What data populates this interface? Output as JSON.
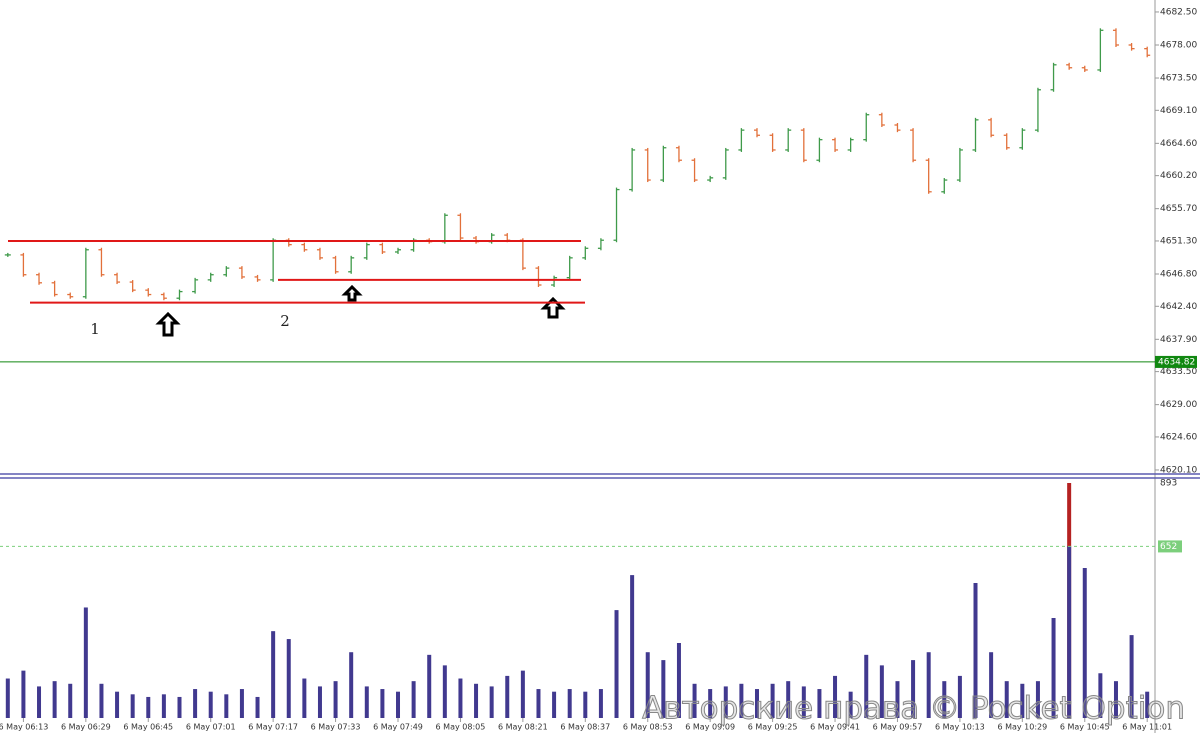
{
  "chart_data": [
    {
      "type": "ohlc",
      "categories": [
        null,
        "6 May 06:13",
        null,
        null,
        null,
        "6 May 06:29",
        null,
        null,
        null,
        "6 May 06:45",
        null,
        null,
        null,
        "6 May 07:01",
        null,
        null,
        null,
        "6 May 07:17",
        null,
        null,
        null,
        "6 May 07:33",
        null,
        null,
        null,
        "6 May 07:49",
        null,
        null,
        null,
        "6 May 08:05",
        null,
        null,
        null,
        "6 May 08:21",
        null,
        null,
        null,
        "6 May 08:37",
        null,
        null,
        null,
        "6 May 08:53",
        null,
        null,
        null,
        "6 May 09:09",
        null,
        null,
        null,
        "6 May 09:25",
        null,
        null,
        null,
        "6 May 09:41",
        null,
        null,
        null,
        "6 May 09:57",
        null,
        null,
        null,
        "6 May 10:13",
        null,
        null,
        null,
        "6 May 10:29",
        null,
        null,
        null,
        "6 May 10:45",
        null,
        null,
        null,
        "6 May 11:01"
      ],
      "values": [
        4649.4,
        4646.7,
        4645.6,
        4644.0,
        4643.7,
        4650.1,
        4646.7,
        4645.7,
        4644.6,
        4644.0,
        4643.5,
        4644.4,
        4646.0,
        4646.7,
        4647.6,
        4646.4,
        4646.0,
        4651.4,
        4650.8,
        4650.1,
        4649.0,
        4647.1,
        4649.0,
        4650.8,
        4649.8,
        4650.1,
        4651.4,
        4651.2,
        4654.8,
        4651.7,
        4651.2,
        4652.1,
        4651.4,
        4647.6,
        4645.3,
        4646.3,
        4649.0,
        4650.3,
        4651.4,
        4658.3,
        4663.7,
        4659.6,
        4664.0,
        4662.3,
        4659.6,
        4659.9,
        4663.7,
        4666.4,
        4665.7,
        4663.7,
        4666.4,
        4662.3,
        4665.1,
        4663.7,
        4665.1,
        4668.5,
        4667.1,
        4666.4,
        4662.3,
        4658.0,
        4659.6,
        4663.7,
        4667.8,
        4665.7,
        4664.0,
        4666.4,
        4671.9,
        4675.3,
        4674.9,
        4674.6,
        4680.0,
        4678.0,
        4677.5,
        4676.6
      ],
      "up_color": "#3f9a4a",
      "down_color": "#e2703a",
      "ylim": [
        4619.55,
        4684.13
      ],
      "yticks": [
        {
          "value": 4682.5,
          "label": "4682.50"
        },
        {
          "value": 4678.0,
          "label": "4678.00"
        },
        {
          "value": 4673.5,
          "label": "4673.50"
        },
        {
          "value": 4669.1,
          "label": "4669.10"
        },
        {
          "value": 4664.6,
          "label": "4664.60"
        },
        {
          "value": 4660.2,
          "label": "4660.20"
        },
        {
          "value": 4655.7,
          "label": "4655.70"
        },
        {
          "value": 4651.3,
          "label": "4651.30"
        },
        {
          "value": 4646.8,
          "label": "4646.80"
        },
        {
          "value": 4642.4,
          "label": "4642.40"
        },
        {
          "value": 4637.9,
          "label": "4637.90"
        },
        {
          "value": 4633.5,
          "label": "4633.50"
        },
        {
          "value": 4629.0,
          "label": "4629.00"
        },
        {
          "value": 4624.6,
          "label": "4624.60"
        },
        {
          "value": 4620.1,
          "label": "4620.10"
        }
      ],
      "current_price": 4634.82,
      "current_color": "#118811",
      "levels": [
        4651.3,
        4646.0,
        4642.9
      ],
      "level_color": "#e01818",
      "annotations": [
        "1",
        "2"
      ]
    },
    {
      "type": "bar",
      "values": [
        150,
        180,
        120,
        140,
        130,
        420,
        130,
        100,
        90,
        80,
        90,
        80,
        110,
        100,
        90,
        110,
        80,
        330,
        300,
        150,
        120,
        140,
        250,
        120,
        110,
        100,
        140,
        240,
        200,
        150,
        130,
        120,
        160,
        180,
        110,
        100,
        110,
        100,
        110,
        410,
        543,
        250,
        220,
        285,
        130,
        110,
        120,
        130,
        110,
        130,
        140,
        120,
        110,
        160,
        100,
        240,
        200,
        140,
        220,
        250,
        140,
        160,
        513,
        250,
        140,
        130,
        140,
        380,
        893,
        570,
        170,
        140,
        315,
        100
      ],
      "color": "#41398f",
      "ylim": [
        0,
        912
      ],
      "yticks": [
        893
      ],
      "level": 652,
      "level_color": "#7ccf7c",
      "above_color": "#b52222"
    }
  ],
  "watermark": "Авторские права © Pocket Option"
}
